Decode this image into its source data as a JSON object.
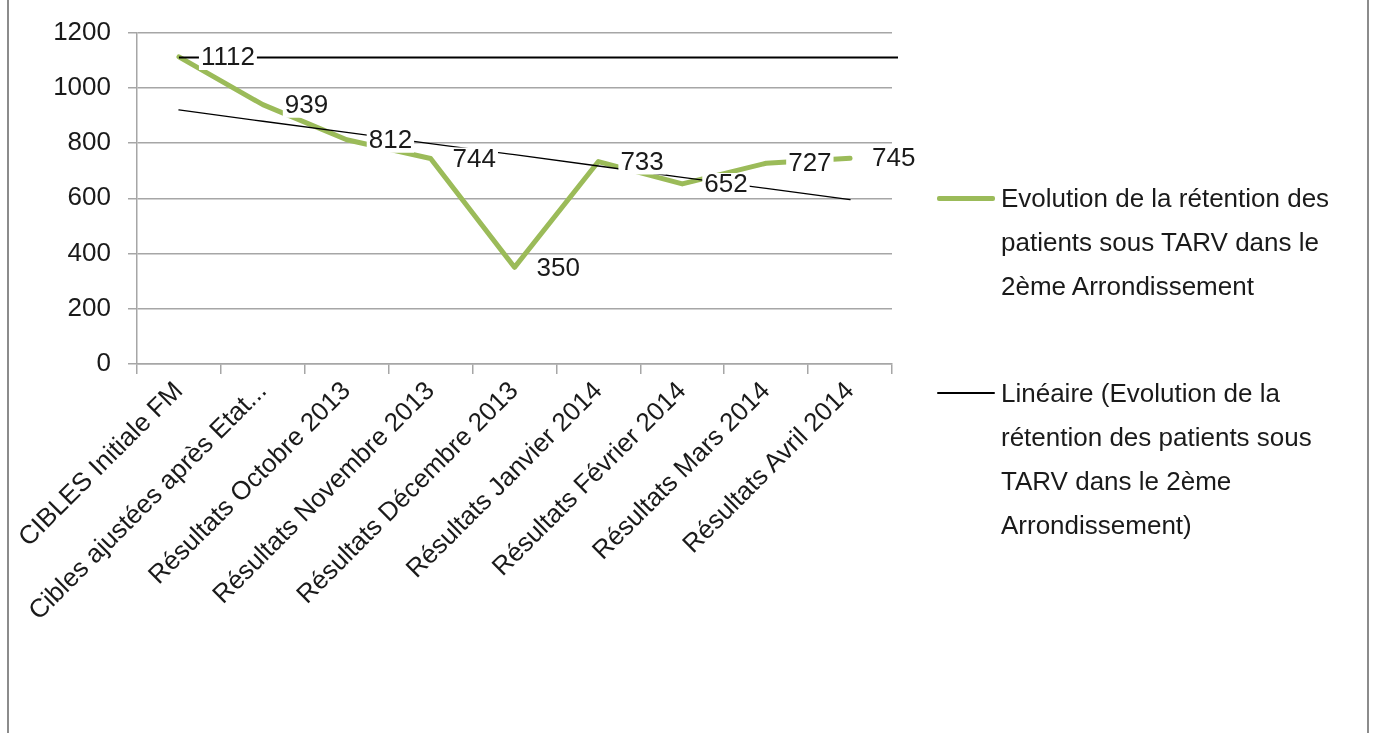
{
  "chart_data": {
    "type": "line",
    "categories": [
      "CIBLES Initiale FM",
      "Cibles ajustées après Etat...",
      "Résultats Octobre 2013",
      "Résultats Novembre 2013",
      "Résultats Décembre 2013",
      "Résultats Janvier 2014",
      "Résultats Février 2014",
      "Résultats Mars 2014",
      "Résultats Avril 2014"
    ],
    "series": [
      {
        "name": "Evolution de la rétention des patients sous TARV dans le 2ème Arrondissement",
        "color": "#9bbb59",
        "values": [
          1112,
          939,
          812,
          744,
          350,
          733,
          652,
          727,
          745
        ],
        "value_labels": [
          "1112",
          "939",
          "812",
          "744",
          "350",
          "733",
          "652",
          "727",
          "745"
        ]
      },
      {
        "name": "Linéaire (Evolution de la rétention des patients sous TARV dans le 2ème Arrondissement)",
        "type": "line",
        "color": "#000000",
        "values": [
          920,
          879,
          839,
          798,
          758,
          717,
          676,
          636,
          595
        ]
      }
    ],
    "ylim": [
      0,
      1200
    ],
    "yticks": [
      0,
      200,
      400,
      600,
      800,
      1000,
      1200
    ],
    "grid": "y",
    "legend": "right",
    "ref_lines": [
      {
        "axis": "y",
        "value": 1110,
        "color": "#000000"
      }
    ]
  }
}
